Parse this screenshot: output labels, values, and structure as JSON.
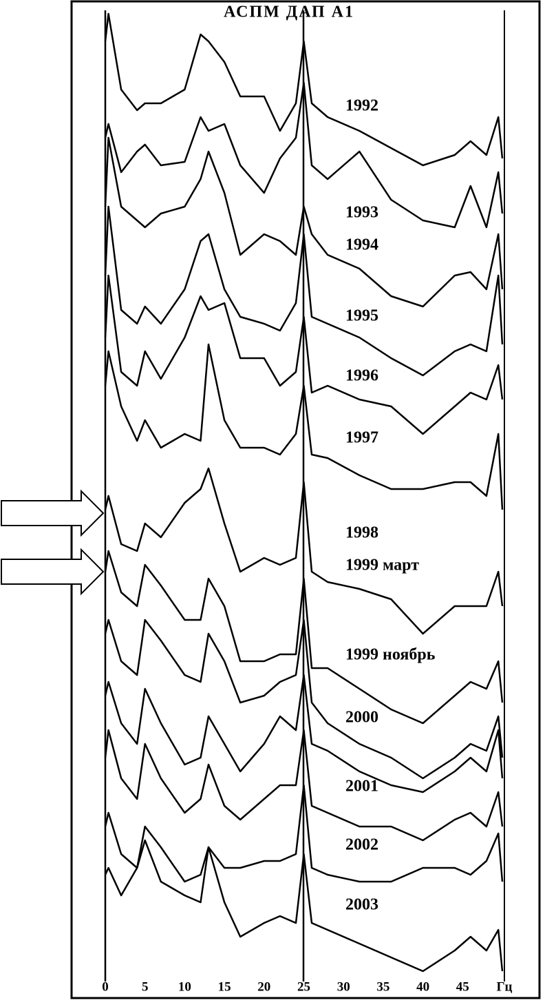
{
  "chart_data": {
    "type": "line",
    "title": "АСПМ ДАП А1",
    "x_unit": "Гц",
    "x": [
      0,
      0.4,
      2,
      4,
      5,
      7,
      10,
      12,
      13,
      15,
      17,
      20,
      22,
      24,
      25,
      26,
      28,
      32,
      36,
      40,
      44,
      46,
      48,
      49.5,
      50
    ],
    "xlim": [
      0,
      50
    ],
    "xticks": [
      0,
      5,
      10,
      15,
      20,
      25,
      30,
      35,
      40,
      45
    ],
    "ylim": [
      0,
      142
    ],
    "series": [
      {
        "name": "1992",
        "color": "#000000",
        "values": [
          136,
          140,
          129,
          126,
          127,
          127,
          129,
          137,
          136,
          133,
          128,
          128,
          123,
          127,
          136,
          127,
          125,
          123,
          120.5,
          118,
          119.5,
          121.5,
          119.5,
          125,
          119
        ]
      },
      {
        "name": "1993",
        "color": "#000000",
        "values": [
          122,
          124,
          117,
          120,
          121,
          118,
          118.5,
          125,
          123,
          124,
          118,
          114,
          119,
          122,
          130,
          118,
          116,
          120,
          113,
          110,
          109,
          115,
          109,
          117,
          111
        ]
      },
      {
        "name": "1994",
        "color": "#000000",
        "values": [
          112,
          122,
          112,
          110,
          109,
          111,
          112,
          116,
          120,
          114,
          105,
          108,
          107,
          105,
          112,
          108,
          105,
          103,
          99,
          97.5,
          102,
          102.5,
          100,
          108,
          100
        ]
      },
      {
        "name": "1995",
        "color": "#000000",
        "values": [
          102,
          112,
          97,
          95,
          97.5,
          95,
          100,
          107,
          108,
          100,
          96,
          95,
          94,
          98,
          108,
          96,
          95,
          93,
          90,
          87.5,
          91,
          92,
          91,
          102,
          92
        ]
      },
      {
        "name": "1996",
        "color": "#000000",
        "values": [
          93,
          102,
          88,
          86,
          91,
          87,
          93,
          99,
          97,
          98,
          90,
          90,
          86,
          88,
          96,
          85,
          86,
          84,
          83,
          79,
          83,
          85,
          84,
          89,
          84
        ]
      },
      {
        "name": "1997",
        "color": "#000000",
        "values": [
          86,
          91,
          83,
          78,
          81,
          77,
          79,
          78,
          92,
          81,
          77,
          77,
          76,
          79,
          86,
          76,
          75.5,
          73,
          71,
          71,
          72,
          72,
          70,
          79,
          68
        ]
      },
      {
        "name": "1998",
        "color": "#000000",
        "values": [
          68,
          70,
          63,
          62,
          66,
          64,
          69,
          71,
          74,
          66,
          59,
          61,
          60,
          61,
          72,
          59,
          57.5,
          56.5,
          55,
          50,
          54,
          54,
          54,
          59,
          54
        ]
      },
      {
        "name": "1999 март",
        "color": "#000000",
        "values": [
          59,
          62,
          56,
          54,
          60,
          57,
          52,
          52,
          58,
          54,
          46,
          46,
          47,
          47,
          58,
          45,
          45,
          42,
          39,
          37,
          41,
          43,
          42,
          46,
          40
        ]
      },
      {
        "name": "1999 ноябрь",
        "color": "#000000",
        "values": [
          50,
          52,
          46,
          44,
          52,
          49,
          44,
          43,
          50,
          46,
          40,
          41,
          43,
          44,
          52,
          40,
          37,
          34,
          32,
          29,
          32,
          34,
          33,
          38,
          32
        ]
      },
      {
        "name": "2000",
        "color": "#000000",
        "values": [
          41,
          43,
          37,
          34,
          42,
          37,
          31,
          32,
          38,
          34,
          30,
          34,
          38,
          36,
          44,
          34,
          33,
          30,
          28,
          27,
          30,
          32,
          30,
          36,
          29
        ]
      },
      {
        "name": "2001",
        "color": "#000000",
        "values": [
          32,
          36,
          29,
          26,
          34,
          29,
          24,
          26,
          31,
          25,
          23,
          26,
          28,
          28,
          36,
          25,
          24,
          22,
          22,
          20,
          23,
          24,
          22,
          27,
          22
        ]
      },
      {
        "name": "2002",
        "color": "#000000",
        "values": [
          22,
          24,
          18,
          16,
          22,
          19,
          14,
          15,
          19,
          16,
          16,
          17,
          17,
          18,
          28,
          16,
          15,
          14,
          14,
          16,
          16,
          15,
          17,
          21,
          14
        ]
      },
      {
        "name": "2003",
        "color": "#000000",
        "values": [
          15,
          16,
          12,
          16,
          20,
          14,
          12,
          11,
          19,
          11,
          6,
          8,
          9,
          8,
          18,
          8,
          7,
          5,
          3,
          1,
          4,
          6,
          4,
          7,
          1
        ]
      }
    ]
  }
}
